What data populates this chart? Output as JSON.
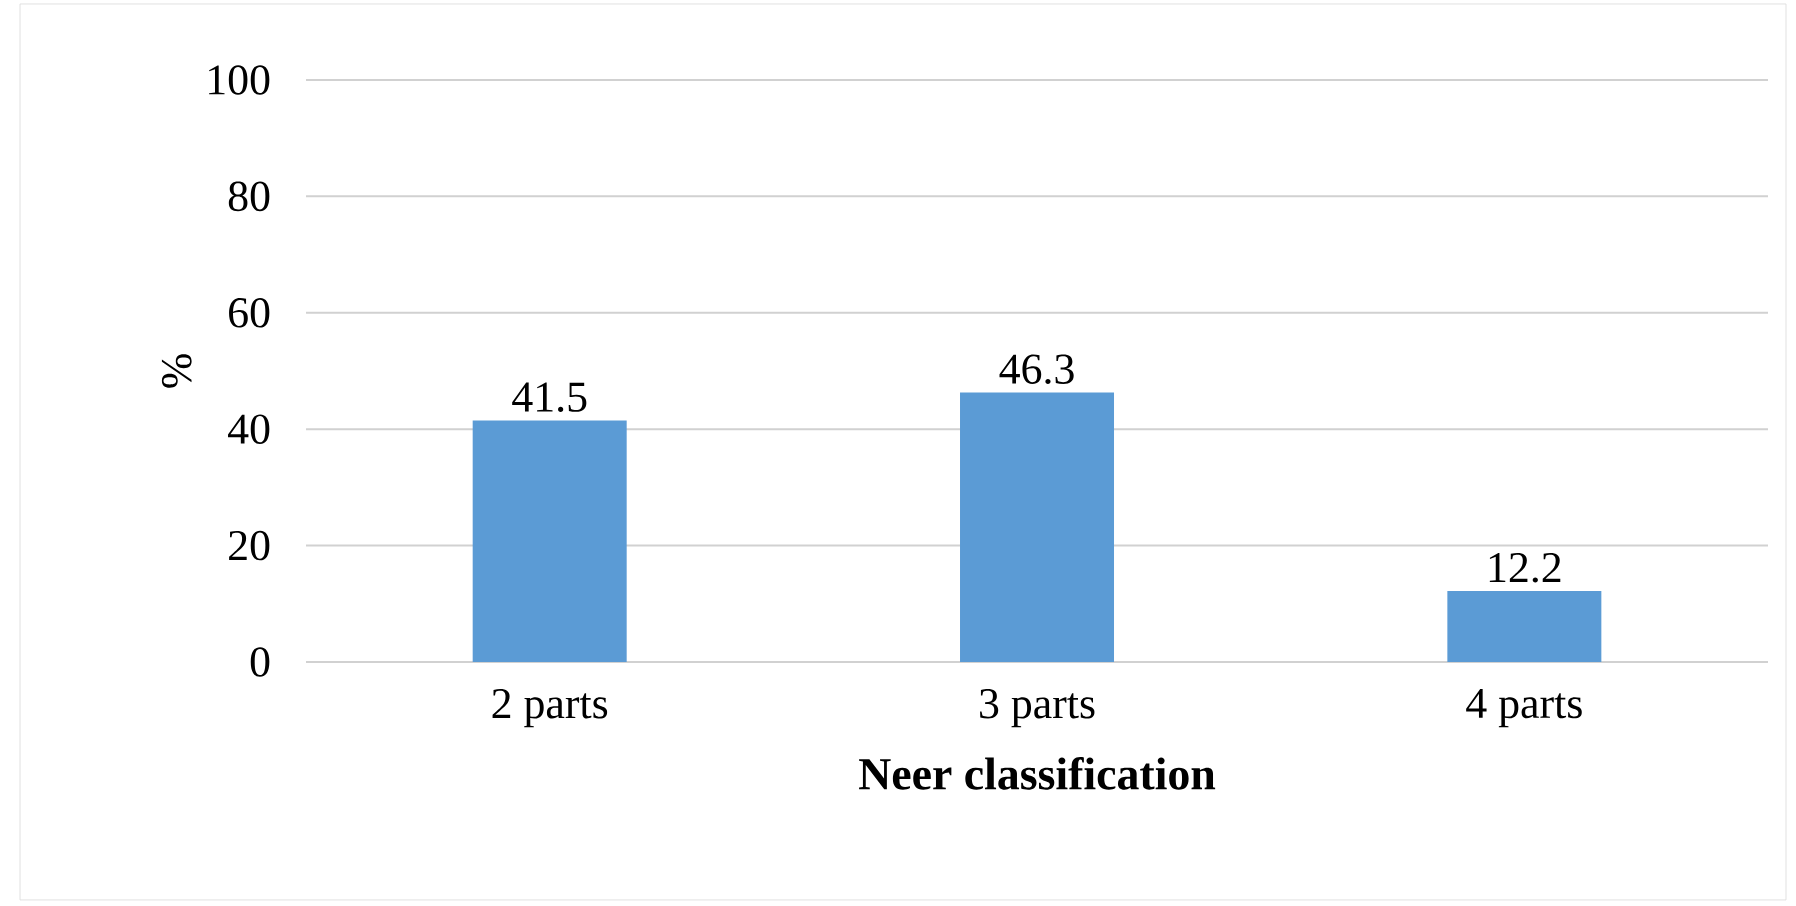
{
  "chart_data": {
    "type": "bar",
    "ylabel": "%",
    "xlabel": "Neer classification",
    "categories": [
      "2 parts",
      "3 parts",
      "4 parts"
    ],
    "values": [
      41.5,
      46.3,
      12.2
    ],
    "color": "#5b9bd5",
    "ylim": [
      0,
      100
    ],
    "yticks": [
      0,
      20,
      40,
      60,
      80,
      100
    ],
    "grid": "y",
    "data_labels": true
  }
}
